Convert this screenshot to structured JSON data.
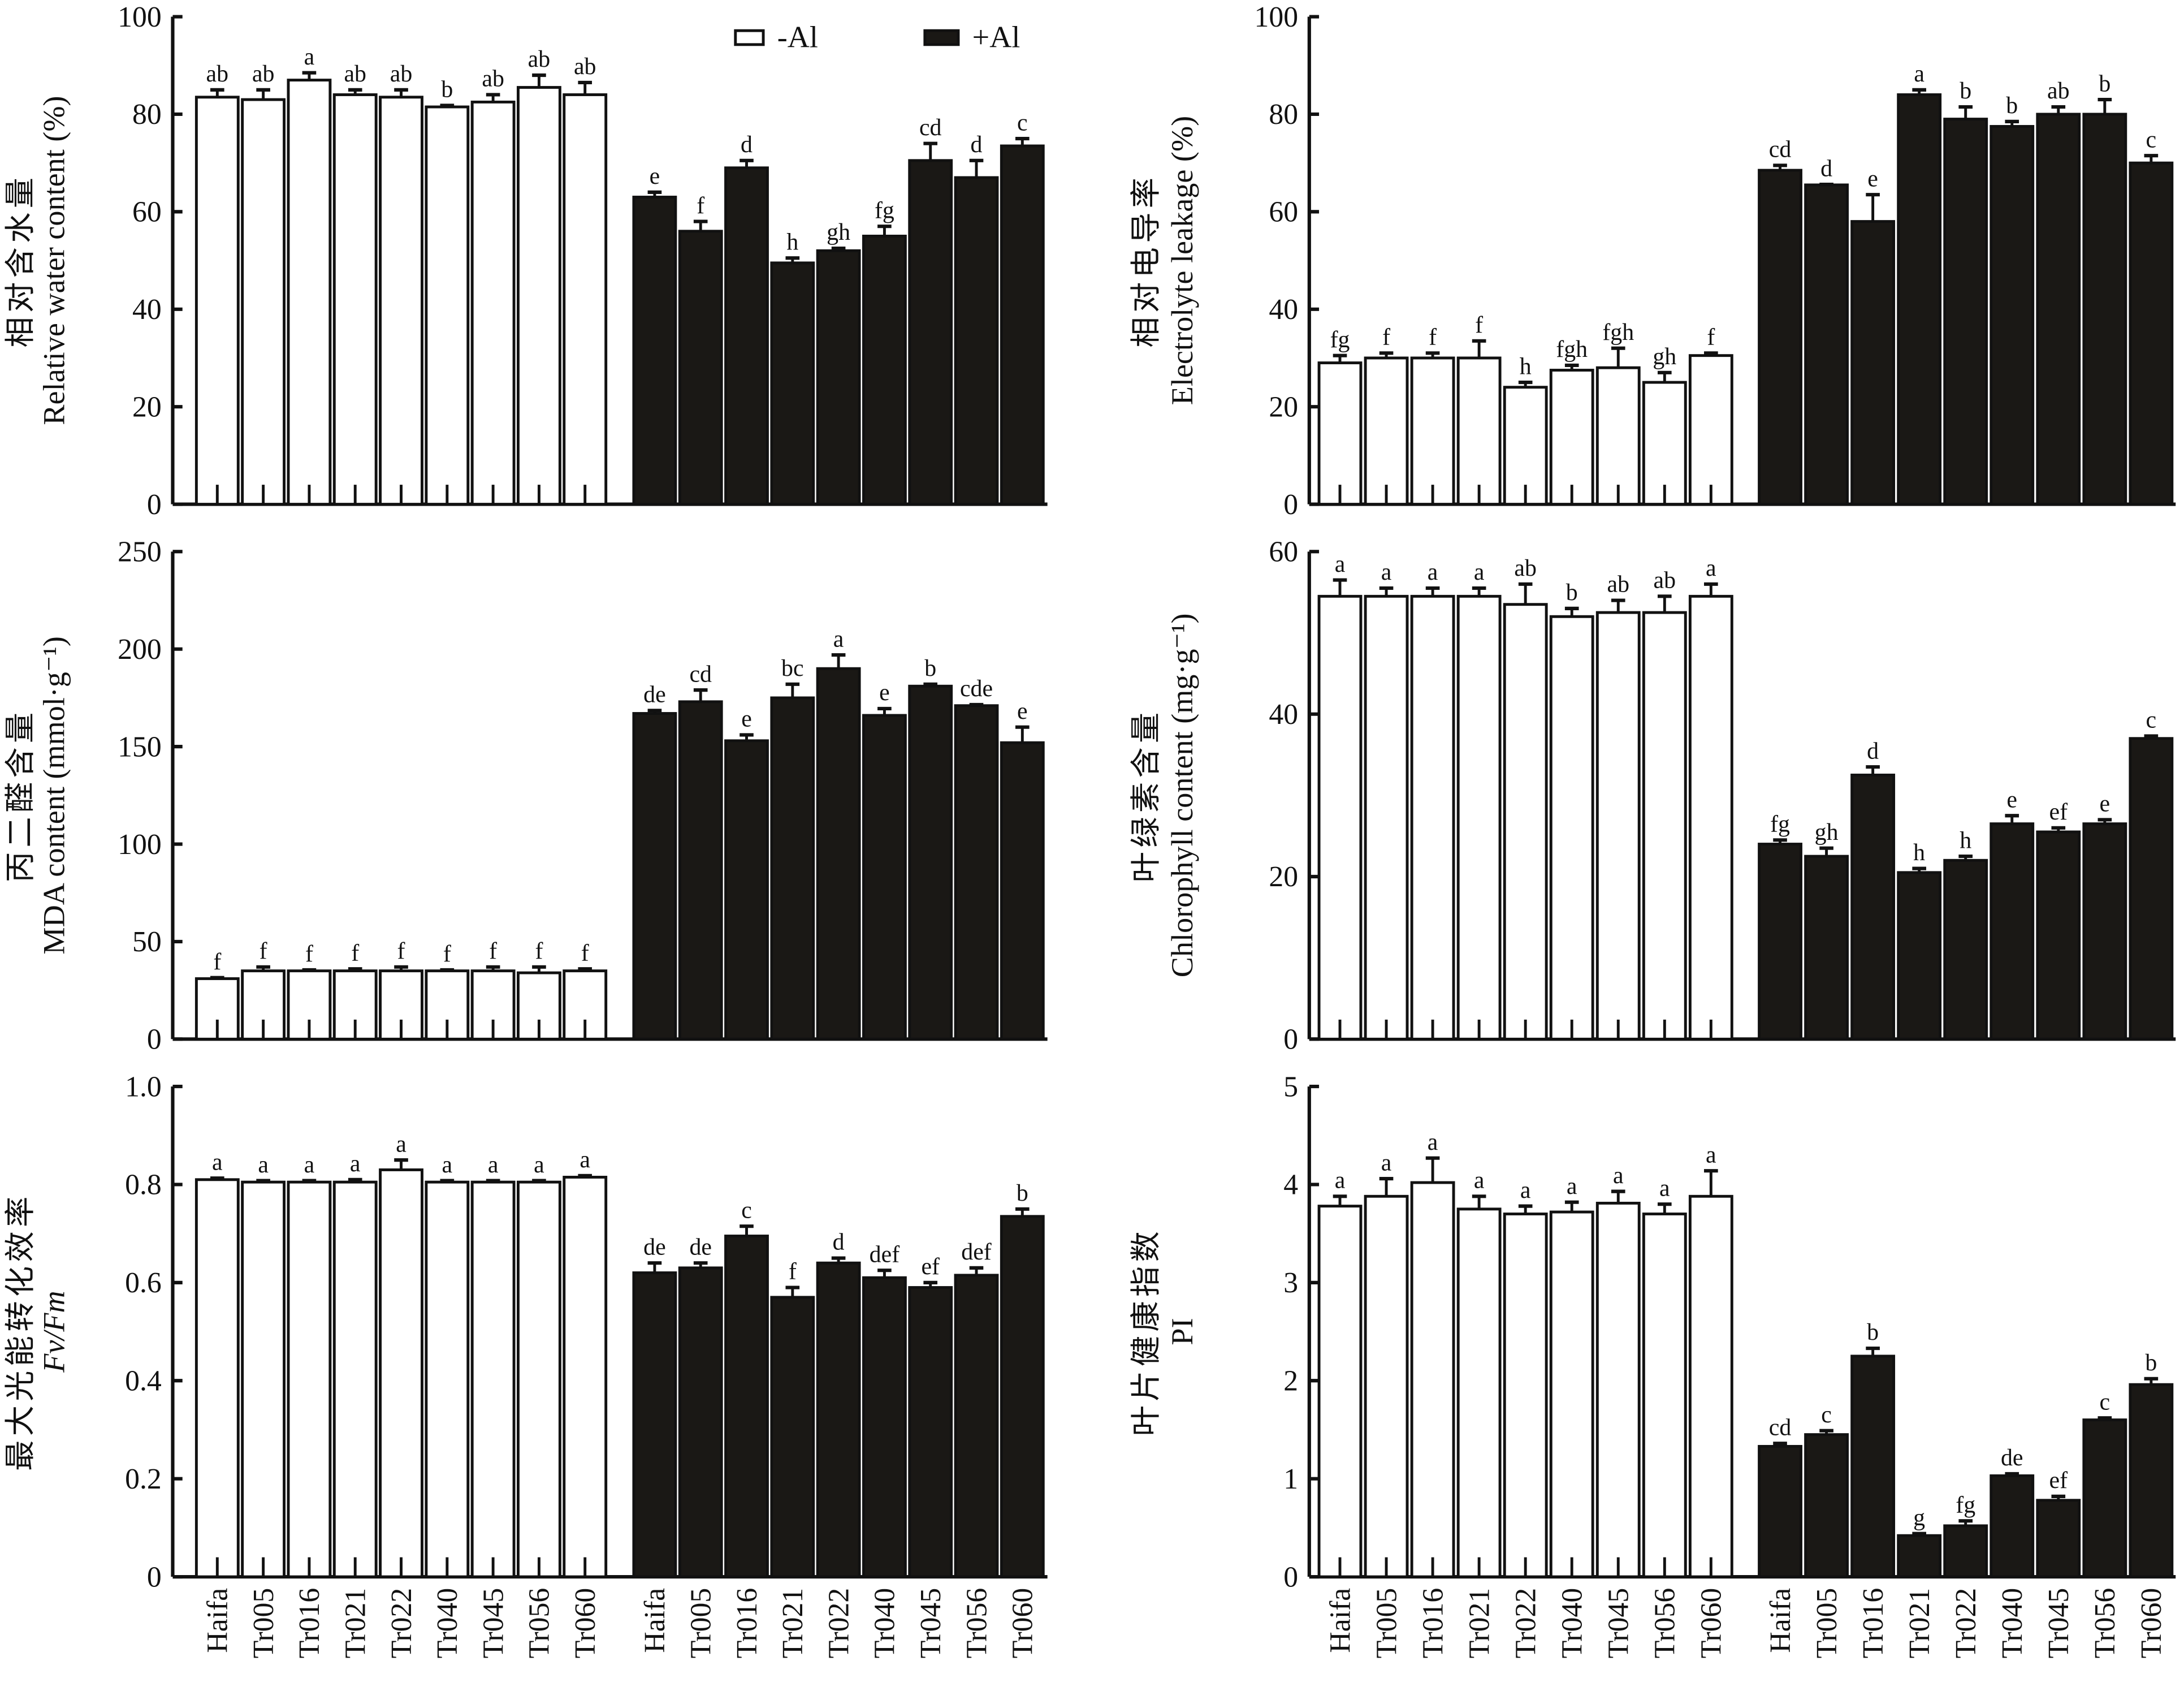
{
  "chart_data": [
    {
      "type": "bar",
      "ylabel_cn": "相对含水量",
      "ylabel_en": "Relative water content (%)",
      "ylim": [
        0,
        100
      ],
      "yticks": [
        "0",
        "20",
        "40",
        "60",
        "80",
        "100"
      ],
      "legend": [
        "-Al",
        "+Al"
      ],
      "categories": [
        "Haifa",
        "Tr005",
        "Tr016",
        "Tr021",
        "Tr022",
        "Tr040",
        "Tr045",
        "Tr056",
        "Tr060"
      ],
      "series": [
        {
          "name": "-Al",
          "values": [
            83.5,
            83,
            87,
            84,
            83.5,
            81.5,
            82.5,
            85.5,
            84
          ],
          "errors": [
            1.5,
            2,
            1.5,
            1,
            1.5,
            0.3,
            1.5,
            2.5,
            2.5
          ],
          "letters": [
            "ab",
            "ab",
            "a",
            "ab",
            "ab",
            "b",
            "ab",
            "ab",
            "ab"
          ]
        },
        {
          "name": "+Al",
          "values": [
            63,
            56,
            69,
            49.5,
            52,
            55,
            70.5,
            67,
            73.5
          ],
          "errors": [
            1,
            2,
            1.5,
            1,
            0.5,
            2,
            3.5,
            3.5,
            1.5
          ],
          "letters": [
            "e",
            "f",
            "d",
            "h",
            "gh",
            "fg",
            "cd",
            "d",
            "c"
          ]
        }
      ]
    },
    {
      "type": "bar",
      "ylabel_cn": "相对电导率",
      "ylabel_en": "Electrolyte leakage (%)",
      "ylim": [
        0,
        100
      ],
      "yticks": [
        "0",
        "20",
        "40",
        "60",
        "80",
        "100"
      ],
      "categories": [
        "Haifa",
        "Tr005",
        "Tr016",
        "Tr021",
        "Tr022",
        "Tr040",
        "Tr045",
        "Tr056",
        "Tr060"
      ],
      "series": [
        {
          "name": "-Al",
          "values": [
            29,
            30,
            30,
            30,
            24,
            27.5,
            28,
            25,
            30.5
          ],
          "errors": [
            1.5,
            1,
            1,
            3.5,
            1,
            1,
            4,
            2,
            0.5
          ],
          "letters": [
            "fg",
            "f",
            "f",
            "f",
            "h",
            "fgh",
            "fgh",
            "gh",
            "f"
          ]
        },
        {
          "name": "+Al",
          "values": [
            68.5,
            65.5,
            58,
            84,
            79,
            77.5,
            80,
            80,
            70
          ],
          "errors": [
            1,
            0.1,
            5.5,
            1,
            2.5,
            1,
            1.5,
            3,
            1.5
          ],
          "letters": [
            "cd",
            "d",
            "e",
            "a",
            "b",
            "b",
            "ab",
            "b",
            "c"
          ]
        }
      ]
    },
    {
      "type": "bar",
      "ylabel_cn": "丙二醛含量",
      "ylabel_en": "MDA content (mmol·g⁻¹)",
      "ylim": [
        0,
        250
      ],
      "yticks": [
        "0",
        "50",
        "100",
        "150",
        "200",
        "250"
      ],
      "categories": [
        "Haifa",
        "Tr005",
        "Tr016",
        "Tr021",
        "Tr022",
        "Tr040",
        "Tr045",
        "Tr056",
        "Tr060"
      ],
      "series": [
        {
          "name": "-Al",
          "values": [
            31,
            35,
            35,
            35,
            35,
            35,
            35,
            34,
            35
          ],
          "errors": [
            0.5,
            2,
            0.5,
            1,
            2,
            0.5,
            2,
            3,
            1
          ],
          "letters": [
            "f",
            "f",
            "f",
            "f",
            "f",
            "f",
            "f",
            "f",
            "f"
          ]
        },
        {
          "name": "+Al",
          "values": [
            167,
            173,
            153,
            175,
            190,
            166,
            181,
            171,
            152
          ],
          "errors": [
            1.5,
            6,
            3,
            7,
            7,
            3.5,
            1,
            0.5,
            8
          ],
          "letters": [
            "de",
            "cd",
            "e",
            "bc",
            "a",
            "e",
            "b",
            "cde",
            "e"
          ]
        }
      ]
    },
    {
      "type": "bar",
      "ylabel_cn": "叶绿素含量",
      "ylabel_en": "Chlorophyll  content (mg·g⁻¹)",
      "ylim": [
        0,
        60
      ],
      "yticks": [
        "0",
        "20",
        "40",
        "60"
      ],
      "categories": [
        "Haifa",
        "Tr005",
        "Tr016",
        "Tr021",
        "Tr022",
        "Tr040",
        "Tr045",
        "Tr056",
        "Tr060"
      ],
      "series": [
        {
          "name": "-Al",
          "values": [
            54.5,
            54.5,
            54.5,
            54.5,
            53.5,
            52,
            52.5,
            52.5,
            54.5
          ],
          "errors": [
            2,
            1,
            1,
            1,
            2.5,
            1,
            1.5,
            2,
            1.5
          ],
          "letters": [
            "a",
            "a",
            "a",
            "a",
            "ab",
            "b",
            "ab",
            "ab",
            "a"
          ]
        },
        {
          "name": "+Al",
          "values": [
            24,
            22.5,
            32.5,
            20.5,
            22,
            26.5,
            25.5,
            26.5,
            37
          ],
          "errors": [
            0.5,
            1,
            1,
            0.5,
            0.5,
            1,
            0.5,
            0.5,
            0.3
          ],
          "letters": [
            "fg",
            "gh",
            "d",
            "h",
            "h",
            "e",
            "ef",
            "e",
            "c"
          ]
        }
      ]
    },
    {
      "type": "bar",
      "ylabel_cn": "最大光能转化效率",
      "ylabel_en": "Fv/Fm",
      "ylim": [
        0,
        1.0
      ],
      "yticks": [
        "0",
        "0.2",
        "0.4",
        "0.6",
        "0.8",
        "1.0"
      ],
      "categories": [
        "Haifa",
        "Tr005",
        "Tr016",
        "Tr021",
        "Tr022",
        "Tr040",
        "Tr045",
        "Tr056",
        "Tr060"
      ],
      "series": [
        {
          "name": "-Al",
          "values": [
            0.81,
            0.805,
            0.805,
            0.805,
            0.83,
            0.805,
            0.805,
            0.805,
            0.815
          ],
          "errors": [
            0.003,
            0.003,
            0.003,
            0.005,
            0.02,
            0.003,
            0.003,
            0.003,
            0.003
          ],
          "letters": [
            "a",
            "a",
            "a",
            "a",
            "a",
            "a",
            "a",
            "a",
            "a"
          ]
        },
        {
          "name": "+Al",
          "values": [
            0.62,
            0.63,
            0.695,
            0.57,
            0.64,
            0.61,
            0.59,
            0.615,
            0.735
          ],
          "errors": [
            0.02,
            0.01,
            0.02,
            0.02,
            0.01,
            0.015,
            0.01,
            0.015,
            0.015
          ],
          "letters": [
            "de",
            "de",
            "c",
            "f",
            "d",
            "def",
            "ef",
            "def",
            "b"
          ]
        }
      ]
    },
    {
      "type": "bar",
      "ylabel_cn": "叶片健康指数",
      "ylabel_en": "PI",
      "ylim": [
        0,
        5
      ],
      "yticks": [
        "0",
        "1",
        "2",
        "3",
        "4",
        "5"
      ],
      "categories": [
        "Haifa",
        "Tr005",
        "Tr016",
        "Tr021",
        "Tr022",
        "Tr040",
        "Tr045",
        "Tr056",
        "Tr060"
      ],
      "series": [
        {
          "name": "-Al",
          "values": [
            3.78,
            3.88,
            4.02,
            3.75,
            3.7,
            3.72,
            3.81,
            3.7,
            3.88
          ],
          "errors": [
            0.1,
            0.18,
            0.25,
            0.13,
            0.08,
            0.1,
            0.12,
            0.1,
            0.26
          ],
          "letters": [
            "a",
            "a",
            "a",
            "a",
            "a",
            "a",
            "a",
            "a",
            "a"
          ]
        },
        {
          "name": "+Al",
          "values": [
            1.33,
            1.45,
            2.25,
            0.42,
            0.52,
            1.03,
            0.78,
            1.6,
            1.96
          ],
          "errors": [
            0.03,
            0.04,
            0.08,
            0.02,
            0.05,
            0.02,
            0.04,
            0.02,
            0.06
          ],
          "letters": [
            "cd",
            "c",
            "b",
            "g",
            "fg",
            "de",
            "ef",
            "c",
            "b"
          ]
        }
      ]
    }
  ]
}
